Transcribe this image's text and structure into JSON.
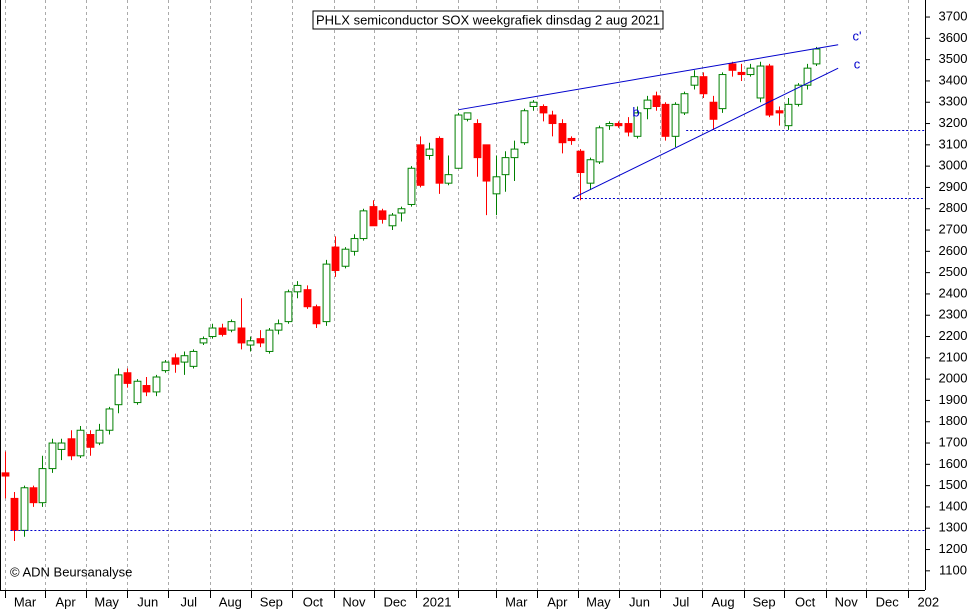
{
  "chart_data": {
    "type": "candlestick",
    "title": "PHLX semiconductor SOX weekgrafiek dinsdag 2 aug 2021",
    "footer": "© ADN Beursanalyse",
    "up_color": "#008000",
    "down_color": "#ff0000",
    "line_color": "#0000cc",
    "grid": true,
    "xlim": [
      -0.5,
      97.5
    ],
    "ylim": [
      1010,
      3780
    ],
    "yticks": [
      1100,
      1200,
      1300,
      1400,
      1500,
      1600,
      1700,
      1800,
      1900,
      2000,
      2100,
      2200,
      2300,
      2400,
      2500,
      2600,
      2700,
      2800,
      2900,
      3000,
      3100,
      3200,
      3300,
      3400,
      3500,
      3600,
      3700
    ],
    "xticks": [
      {
        "value": 0,
        "label": "Mar"
      },
      {
        "value": 4.3,
        "label": "Apr"
      },
      {
        "value": 8.6,
        "label": "May"
      },
      {
        "value": 13.0,
        "label": "Jun"
      },
      {
        "value": 17.3,
        "label": "Jul"
      },
      {
        "value": 21.7,
        "label": "Aug"
      },
      {
        "value": 26.1,
        "label": "Sep"
      },
      {
        "value": 30.4,
        "label": "Oct"
      },
      {
        "value": 34.9,
        "label": "Nov"
      },
      {
        "value": 39.1,
        "label": "Dec"
      },
      {
        "value": 43.6,
        "label": "2021"
      },
      {
        "value": 48.0,
        "label": null
      },
      {
        "value": 52.0,
        "label": "Mar"
      },
      {
        "value": 56.4,
        "label": "Apr"
      },
      {
        "value": 60.7,
        "label": "May"
      },
      {
        "value": 65.1,
        "label": "Jun"
      },
      {
        "value": 69.4,
        "label": "Jul"
      },
      {
        "value": 73.9,
        "label": "Aug"
      },
      {
        "value": 78.3,
        "label": "Sep"
      },
      {
        "value": 82.6,
        "label": "Oct"
      },
      {
        "value": 87.0,
        "label": "Nov"
      },
      {
        "value": 91.3,
        "label": "Dec"
      },
      {
        "value": 95.7,
        "label": "202"
      }
    ],
    "open": [
      1560,
      1440,
      1290,
      1490,
      1420,
      1580,
      1670,
      1720,
      1640,
      1740,
      1700,
      1760,
      1880,
      2030,
      1890,
      1970,
      1940,
      2040,
      2100,
      2080,
      2060,
      2170,
      2200,
      2240,
      2230,
      2240,
      2160,
      2190,
      2130,
      2230,
      2270,
      2410,
      2420,
      2340,
      2270,
      2620,
      2530,
      2600,
      2660,
      2810,
      2790,
      2720,
      2780,
      2820,
      3100,
      3050,
      3130,
      2920,
      2990,
      3220,
      3200,
      3100,
      2870,
      2960,
      3040,
      3110,
      3280,
      3280,
      3240,
      3200,
      3130,
      3070,
      2920,
      3020,
      3190,
      3200,
      3200,
      3140,
      3270,
      3330,
      3290,
      3140,
      3250,
      3380,
      3420,
      3300,
      3270,
      3480,
      3440,
      3430,
      3320,
      3470,
      3260,
      3190,
      3290,
      3380,
      3480
    ],
    "high": [
      1660,
      1470,
      1500,
      1500,
      1640,
      1720,
      1720,
      1760,
      1780,
      1760,
      1790,
      1870,
      2050,
      2050,
      2000,
      2010,
      2020,
      2090,
      2120,
      2130,
      2140,
      2200,
      2260,
      2260,
      2280,
      2380,
      2200,
      2230,
      2240,
      2280,
      2420,
      2460,
      2440,
      2350,
      2560,
      2670,
      2620,
      2680,
      2800,
      2840,
      2800,
      2780,
      2810,
      3000,
      3140,
      3110,
      3140,
      3050,
      3250,
      3250,
      3220,
      3100,
      3050,
      3070,
      3120,
      3270,
      3310,
      3290,
      3260,
      3220,
      3140,
      3080,
      3040,
      3190,
      3210,
      3210,
      3230,
      3280,
      3330,
      3350,
      3300,
      3300,
      3350,
      3450,
      3440,
      3330,
      3440,
      3490,
      3480,
      3480,
      3490,
      3480,
      3280,
      3320,
      3390,
      3480,
      3560
    ],
    "low": [
      1440,
      1240,
      1260,
      1400,
      1400,
      1560,
      1620,
      1620,
      1630,
      1640,
      1690,
      1740,
      1840,
      1960,
      1880,
      1920,
      1920,
      2030,
      2030,
      2020,
      2050,
      2160,
      2190,
      2200,
      2220,
      2140,
      2130,
      2150,
      2120,
      2210,
      2260,
      2380,
      2330,
      2240,
      2250,
      2480,
      2520,
      2580,
      2650,
      2720,
      2730,
      2700,
      2740,
      2810,
      2900,
      3030,
      2870,
      2910,
      2990,
      3210,
      2950,
      2770,
      2770,
      2880,
      2930,
      3100,
      3260,
      3210,
      3140,
      3060,
      3100,
      2840,
      2890,
      3010,
      3170,
      3180,
      3140,
      3130,
      3220,
      3260,
      3120,
      3090,
      3240,
      3360,
      3320,
      3170,
      3250,
      3420,
      3400,
      3420,
      3300,
      3230,
      3190,
      3170,
      3280,
      3360,
      3470
    ],
    "close": [
      1545,
      1290,
      1490,
      1420,
      1580,
      1700,
      1700,
      1640,
      1760,
      1680,
      1760,
      1860,
      2020,
      1980,
      1990,
      1940,
      2010,
      2080,
      2070,
      2110,
      2130,
      2190,
      2240,
      2210,
      2270,
      2170,
      2180,
      2170,
      2230,
      2260,
      2410,
      2440,
      2340,
      2260,
      2540,
      2510,
      2610,
      2660,
      2790,
      2720,
      2750,
      2770,
      2800,
      2990,
      2910,
      3080,
      2920,
      2960,
      3240,
      3250,
      3040,
      2930,
      2950,
      3040,
      3080,
      3260,
      3300,
      3250,
      3200,
      3110,
      3120,
      2970,
      3030,
      3180,
      3200,
      3190,
      3160,
      3250,
      3310,
      3280,
      3140,
      3290,
      3340,
      3420,
      3340,
      3220,
      3430,
      3450,
      3430,
      3460,
      3470,
      3240,
      3250,
      3290,
      3380,
      3460,
      3550
    ],
    "hlines": [
      {
        "y": 1290,
        "from": 0.6
      },
      {
        "y": 2850,
        "from": 60.2
      },
      {
        "y": 3170,
        "from": 72.2
      }
    ],
    "trendlines": [
      {
        "from": [
          48.1,
          3265
        ],
        "to": [
          88.3,
          3570
        ]
      },
      {
        "from": [
          60.2,
          2850
        ],
        "to": [
          88.3,
          3460
        ]
      }
    ],
    "annotations": [
      "b",
      "c'",
      "c"
    ]
  }
}
